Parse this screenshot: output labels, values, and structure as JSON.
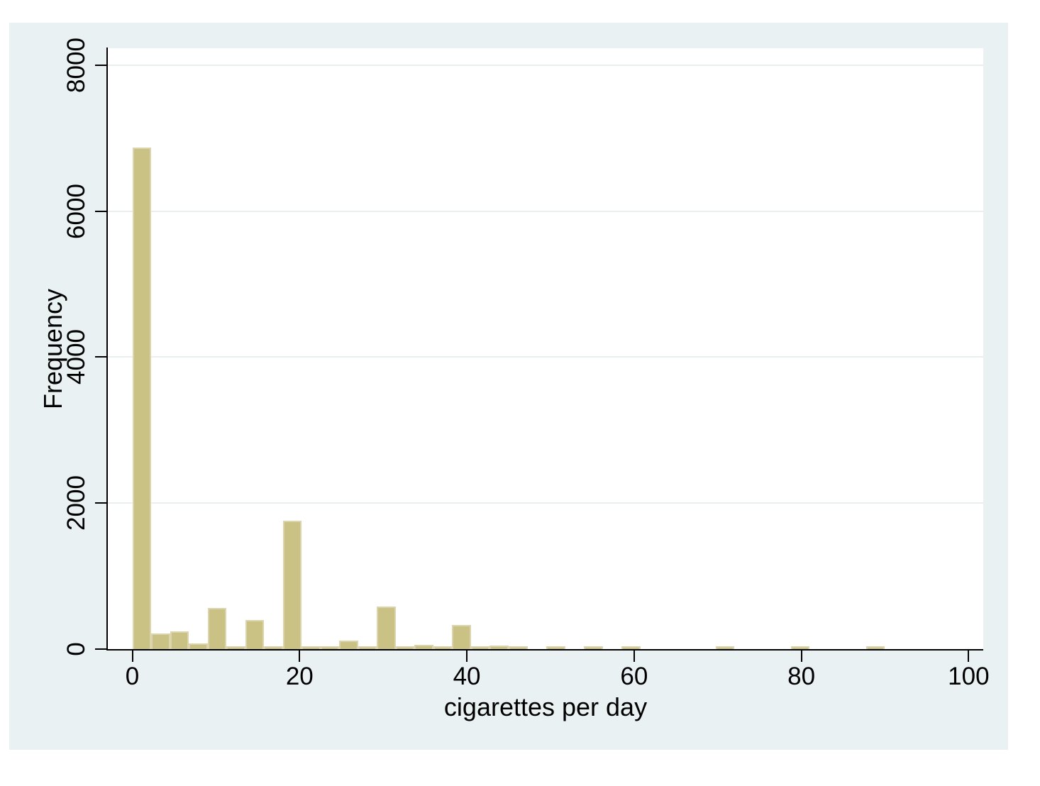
{
  "figure": {
    "background": "#ffffff",
    "region_background": "#eaf1f3"
  },
  "chart_data": {
    "type": "bar",
    "subtype": "histogram",
    "title": "",
    "xlabel": "cigarettes per day",
    "ylabel": "Frequency",
    "x_ticks": [
      0,
      20,
      40,
      60,
      80,
      100
    ],
    "x_tick_labels": [
      "0",
      "20",
      "40",
      "60",
      "80",
      "100"
    ],
    "y_ticks": [
      0,
      2000,
      4000,
      6000,
      8000
    ],
    "y_tick_labels": [
      "0",
      "2000",
      "4000",
      "6000",
      "8000"
    ],
    "xlim": [
      -2.93,
      101.75
    ],
    "ylim": [
      0,
      8230
    ],
    "grid": "horizontal-only",
    "legend": "none",
    "bar_color": "#cac184",
    "bar_border_color": "#dbd4ac",
    "gridline_color": "#e9eff1",
    "axis_color": "#000000",
    "text_color": "#000000",
    "bin_width": 2.25,
    "bins": [
      {
        "start": 0,
        "count": 6850
      },
      {
        "start": 2.25,
        "count": 195
      },
      {
        "start": 4.5,
        "count": 225
      },
      {
        "start": 6.75,
        "count": 60
      },
      {
        "start": 9,
        "count": 540
      },
      {
        "start": 11.25,
        "count": 20
      },
      {
        "start": 13.5,
        "count": 380
      },
      {
        "start": 15.75,
        "count": 15
      },
      {
        "start": 18,
        "count": 1740
      },
      {
        "start": 20.25,
        "count": 15
      },
      {
        "start": 22.5,
        "count": 15
      },
      {
        "start": 24.75,
        "count": 95
      },
      {
        "start": 27,
        "count": 15
      },
      {
        "start": 29.25,
        "count": 560
      },
      {
        "start": 31.5,
        "count": 15
      },
      {
        "start": 33.75,
        "count": 35
      },
      {
        "start": 36,
        "count": 15
      },
      {
        "start": 38.25,
        "count": 310
      },
      {
        "start": 40.5,
        "count": 20
      },
      {
        "start": 42.75,
        "count": 30
      },
      {
        "start": 45,
        "count": 15
      },
      {
        "start": 49.5,
        "count": 20
      },
      {
        "start": 54,
        "count": 15
      },
      {
        "start": 58.5,
        "count": 20
      },
      {
        "start": 69.75,
        "count": 20
      },
      {
        "start": 78.75,
        "count": 20
      },
      {
        "start": 87.75,
        "count": 20
      }
    ]
  }
}
